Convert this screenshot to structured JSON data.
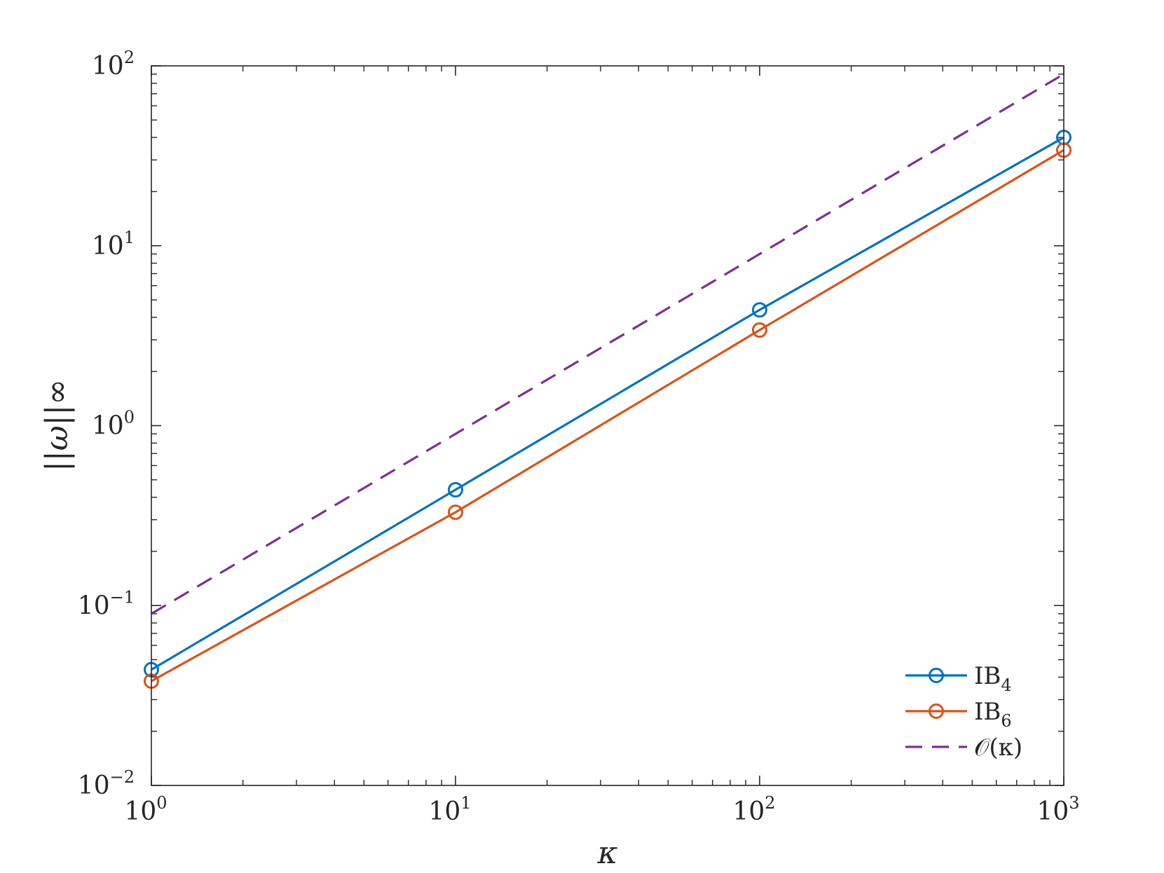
{
  "chart_data": {
    "type": "line",
    "xscale": "log",
    "yscale": "log",
    "xlim": [
      1,
      1000
    ],
    "ylim": [
      0.01,
      100
    ],
    "xlabel": "κ",
    "ylabel": "||ω||∞",
    "x_ticks": [
      {
        "value": 1,
        "base": "10",
        "exp": "0"
      },
      {
        "value": 10,
        "base": "10",
        "exp": "1"
      },
      {
        "value": 100,
        "base": "10",
        "exp": "2"
      },
      {
        "value": 1000,
        "base": "10",
        "exp": "3"
      }
    ],
    "y_ticks": [
      {
        "value": 0.01,
        "base": "10",
        "exp": "−2"
      },
      {
        "value": 0.1,
        "base": "10",
        "exp": "−1"
      },
      {
        "value": 1,
        "base": "10",
        "exp": "0"
      },
      {
        "value": 10,
        "base": "10",
        "exp": "1"
      },
      {
        "value": 100,
        "base": "10",
        "exp": "2"
      }
    ],
    "legend_position": "bottom-right",
    "grid": false,
    "series": [
      {
        "name": "IB",
        "sub": "4",
        "color": "#0072BD",
        "dash": "none",
        "marker": "circle",
        "x": [
          1,
          10,
          100,
          1000
        ],
        "y": [
          0.044,
          0.44,
          4.4,
          40
        ]
      },
      {
        "name": "IB",
        "sub": "6",
        "color": "#D95319",
        "dash": "none",
        "marker": "circle",
        "x": [
          1,
          10,
          100,
          1000
        ],
        "y": [
          0.038,
          0.33,
          3.4,
          34
        ]
      },
      {
        "name": "𝒪(κ)",
        "sub": "",
        "color": "#7E2F8E",
        "dash": "dashed",
        "marker": "none",
        "x": [
          1,
          1000
        ],
        "y": [
          0.09,
          90
        ]
      }
    ]
  }
}
